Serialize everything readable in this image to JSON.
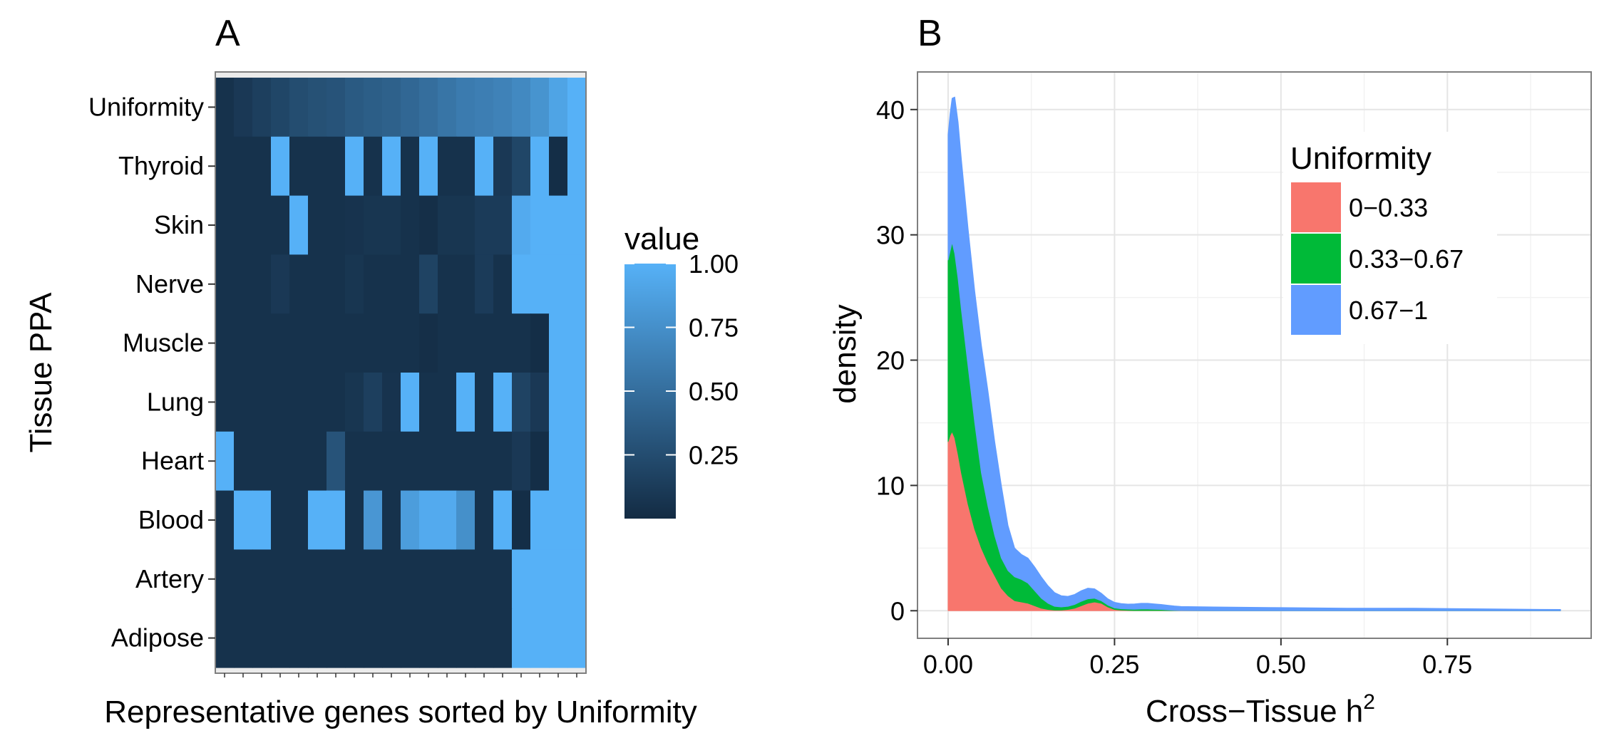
{
  "chart_data": [
    {
      "type": "heatmap",
      "panel_label": "A",
      "xlabel": "Representative genes sorted by Uniformity",
      "ylabel": "Tissue PPA",
      "rows": [
        "Uniformity",
        "Thyroid",
        "Skin",
        "Nerve",
        "Muscle",
        "Lung",
        "Heart",
        "Blood",
        "Artery",
        "Adipose"
      ],
      "n_columns": 20,
      "color_scale": {
        "low": "#132B43",
        "high": "#56B1F7"
      },
      "legend": {
        "title": "value",
        "ticks": [
          1.0,
          0.75,
          0.5,
          0.25
        ],
        "tick_labels": [
          "1.00",
          "0.75",
          "0.50",
          "0.25"
        ],
        "range": [
          0,
          1
        ]
      },
      "values": [
        [
          0.05,
          0.1,
          0.15,
          0.2,
          0.25,
          0.28,
          0.3,
          0.35,
          0.38,
          0.4,
          0.45,
          0.5,
          0.55,
          0.6,
          0.62,
          0.65,
          0.7,
          0.78,
          0.9,
          1.0
        ],
        [
          0.05,
          0.05,
          0.05,
          1.0,
          0.05,
          0.05,
          0.05,
          1.0,
          0.05,
          1.0,
          0.05,
          1.0,
          0.05,
          0.05,
          1.0,
          0.1,
          0.2,
          1.0,
          0.02,
          1.0
        ],
        [
          0.05,
          0.05,
          0.05,
          0.05,
          1.0,
          0.05,
          0.05,
          0.06,
          0.08,
          0.08,
          0.05,
          0.03,
          0.08,
          0.08,
          0.12,
          0.12,
          0.95,
          1.0,
          1.0,
          1.0
        ],
        [
          0.05,
          0.05,
          0.05,
          0.1,
          0.05,
          0.05,
          0.05,
          0.08,
          0.05,
          0.05,
          0.05,
          0.18,
          0.05,
          0.05,
          0.12,
          0.05,
          1.0,
          1.0,
          1.0,
          1.0
        ],
        [
          0.05,
          0.05,
          0.05,
          0.05,
          0.05,
          0.05,
          0.05,
          0.05,
          0.05,
          0.05,
          0.05,
          0.03,
          0.05,
          0.05,
          0.05,
          0.05,
          0.05,
          0.02,
          1.0,
          1.0
        ],
        [
          0.05,
          0.05,
          0.05,
          0.05,
          0.05,
          0.05,
          0.05,
          0.08,
          0.15,
          0.06,
          1.0,
          0.05,
          0.05,
          1.0,
          0.05,
          1.0,
          0.18,
          0.1,
          1.0,
          1.0
        ],
        [
          1.0,
          0.05,
          0.05,
          0.05,
          0.05,
          0.05,
          0.3,
          0.05,
          0.05,
          0.05,
          0.05,
          0.05,
          0.05,
          0.05,
          0.05,
          0.05,
          0.1,
          0.02,
          1.0,
          1.0
        ],
        [
          0.05,
          1.0,
          1.0,
          0.05,
          0.05,
          1.0,
          1.0,
          0.05,
          0.8,
          0.05,
          0.85,
          0.95,
          0.95,
          0.75,
          0.05,
          1.0,
          0.02,
          1.0,
          1.0,
          1.0
        ],
        [
          0.05,
          0.05,
          0.05,
          0.05,
          0.05,
          0.05,
          0.05,
          0.05,
          0.05,
          0.05,
          0.05,
          0.05,
          0.05,
          0.05,
          0.05,
          0.05,
          1.0,
          1.0,
          1.0,
          1.0
        ],
        [
          0.05,
          0.05,
          0.05,
          0.05,
          0.05,
          0.05,
          0.05,
          0.05,
          0.05,
          0.05,
          0.05,
          0.05,
          0.05,
          0.05,
          0.05,
          0.05,
          1.0,
          1.0,
          1.0,
          1.0
        ]
      ]
    },
    {
      "type": "area",
      "stacked": true,
      "panel_label": "B",
      "xlabel": "Cross−Tissue h",
      "xlabel_superscript": "2",
      "ylabel": "density",
      "xlim": [
        -0.046,
        0.966
      ],
      "ylim": [
        -2.2,
        43.0
      ],
      "xticks": [
        0.0,
        0.25,
        0.5,
        0.75
      ],
      "xtick_labels": [
        "0.00",
        "0.25",
        "0.50",
        "0.75"
      ],
      "yticks": [
        0,
        10,
        20,
        30,
        40
      ],
      "ytick_labels": [
        "0",
        "10",
        "20",
        "30",
        "40"
      ],
      "grid": true,
      "legend": {
        "title": "Uniformity",
        "position": "top-right"
      },
      "x": [
        0,
        0.003,
        0.006,
        0.01,
        0.015,
        0.02,
        0.03,
        0.04,
        0.05,
        0.06,
        0.07,
        0.08,
        0.09,
        0.1,
        0.11,
        0.12,
        0.13,
        0.14,
        0.15,
        0.16,
        0.17,
        0.18,
        0.19,
        0.2,
        0.21,
        0.22,
        0.23,
        0.24,
        0.25,
        0.26,
        0.27,
        0.28,
        0.29,
        0.3,
        0.31,
        0.32,
        0.33,
        0.34,
        0.35,
        0.4,
        0.5,
        0.6,
        0.7,
        0.8,
        0.92
      ],
      "series": [
        {
          "name": "0−0.33",
          "color": "#F8766D",
          "values": [
            13.5,
            14,
            14.3,
            13.8,
            12.5,
            11,
            8.5,
            6.5,
            5,
            3.8,
            2.8,
            1.8,
            1.2,
            0.8,
            0.7,
            0.6,
            0.4,
            0.2,
            0.1,
            0.05,
            0.05,
            0.1,
            0.2,
            0.4,
            0.6,
            0.7,
            0.6,
            0.3,
            0.1,
            0.05,
            0.03,
            0.02,
            0.02,
            0.02,
            0.02,
            0.02,
            0.01,
            0.01,
            0.01,
            0,
            0,
            0,
            0,
            0,
            0
          ]
        },
        {
          "name": "0.33−0.67",
          "color": "#00BA38",
          "values": [
            14.5,
            14.7,
            15.1,
            14.7,
            14,
            13,
            11,
            8.5,
            6,
            4.5,
            3.2,
            2.4,
            2.0,
            1.9,
            1.8,
            1.6,
            1.2,
            0.8,
            0.5,
            0.3,
            0.25,
            0.25,
            0.3,
            0.35,
            0.35,
            0.3,
            0.2,
            0.15,
            0.12,
            0.1,
            0.1,
            0.1,
            0.12,
            0.12,
            0.1,
            0.08,
            0.05,
            0.02,
            0.01,
            0,
            0,
            0,
            0,
            0,
            0
          ]
        },
        {
          "name": "0.67−1",
          "color": "#619CFF",
          "values": [
            10,
            11,
            11.5,
            12.5,
            12.5,
            12,
            11,
            10.5,
            10.2,
            9.2,
            7.5,
            5.8,
            3.6,
            2.3,
            2.0,
            2.0,
            1.9,
            1.7,
            1.4,
            1.1,
            0.9,
            0.8,
            0.8,
            0.85,
            0.85,
            0.75,
            0.6,
            0.5,
            0.45,
            0.42,
            0.4,
            0.42,
            0.45,
            0.45,
            0.42,
            0.4,
            0.38,
            0.35,
            0.32,
            0.3,
            0.25,
            0.2,
            0.2,
            0.15,
            0.1
          ]
        }
      ]
    }
  ]
}
